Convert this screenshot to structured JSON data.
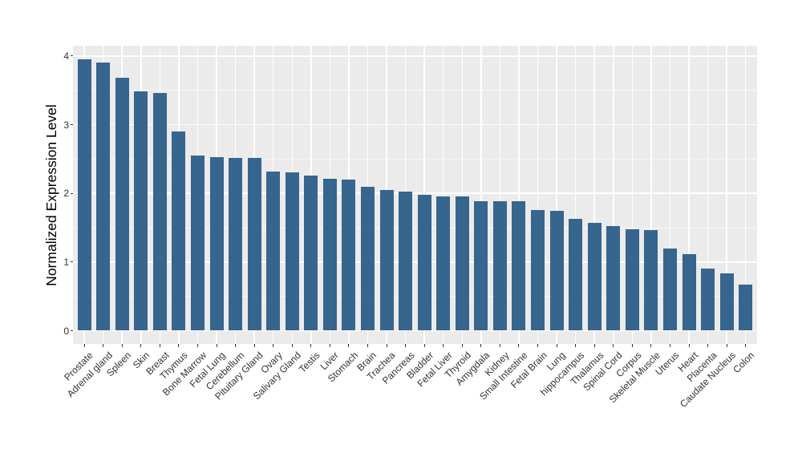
{
  "chart_data": {
    "type": "bar",
    "title": "",
    "xlabel": "",
    "ylabel": "Normalized Expression Level",
    "categories": [
      "Prostate",
      "Adrenal gland",
      "Spleen",
      "Skin",
      "Breast",
      "Thymus",
      "Bone Marrow",
      "Fetal Lung",
      "Cerebellum",
      "Pituitary Gland",
      "Ovary",
      "Salivary Gland",
      "Testis",
      "Liver",
      "Stomach",
      "Brain",
      "Trachea",
      "Pancreas",
      "Bladder",
      "Fetal Liver",
      "Thyroid",
      "Amygdala",
      "Kidney",
      "Small Intestine",
      "Fetal Brain",
      "Lung",
      "hippocampus",
      "Thalamus",
      "Spinal Cord",
      "Corpus",
      "Skeletal Muscle",
      "Uterus",
      "Heart",
      "Placenta",
      "Caudate Nucleus",
      "Colon"
    ],
    "values": [
      3.95,
      3.9,
      3.68,
      3.49,
      3.46,
      2.9,
      2.55,
      2.53,
      2.51,
      2.51,
      2.32,
      2.31,
      2.26,
      2.21,
      2.2,
      2.09,
      2.05,
      2.02,
      1.98,
      1.96,
      1.95,
      1.89,
      1.89,
      1.88,
      1.76,
      1.75,
      1.63,
      1.57,
      1.52,
      1.48,
      1.47,
      1.2,
      1.12,
      0.91,
      0.83,
      0.67
    ],
    "yticks": [
      0,
      1,
      2,
      3,
      4
    ],
    "minor_yticks": [
      0.5,
      1.5,
      2.5,
      3.5
    ],
    "ylim": [
      -0.2,
      4.15
    ],
    "grid": "major and minor horizontal white lines, vertical white lines at each category",
    "legend": false,
    "sort_order": "descending",
    "colors": {
      "bar_fill": "#36658D",
      "panel_background": "#EBEBEB",
      "gridline": "#FFFFFF",
      "axis_text": "#333333",
      "axis_title": "#000000",
      "figure_background": "#FFFFFF"
    }
  }
}
